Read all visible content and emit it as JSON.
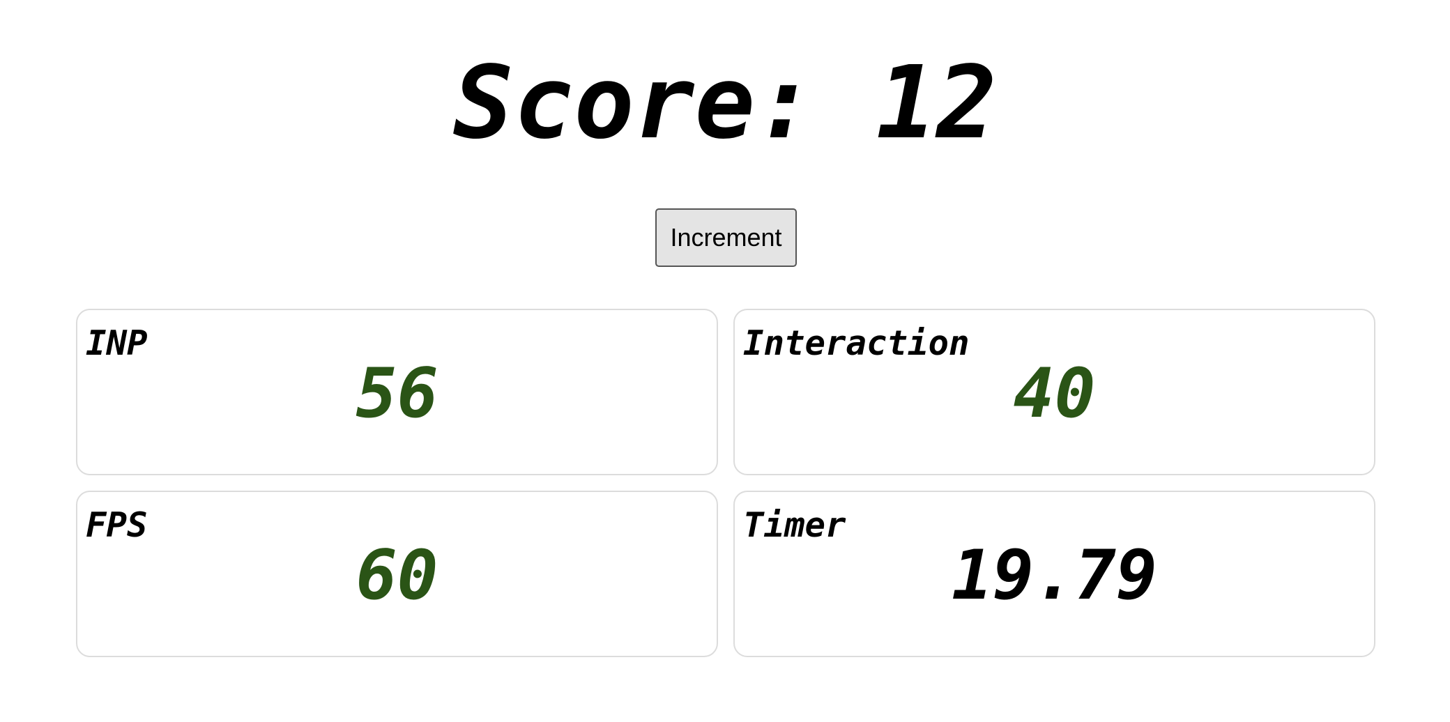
{
  "score": {
    "text": "Score: 12"
  },
  "increment_button": {
    "label": "Increment"
  },
  "metrics": [
    {
      "label": "INP",
      "value": "56",
      "color": "#2a5416"
    },
    {
      "label": "Interaction",
      "value": "40",
      "color": "#2a5416"
    },
    {
      "label": "FPS",
      "value": "60",
      "color": "#2a5416"
    },
    {
      "label": "Timer",
      "value": "19.79",
      "color": "#000000"
    }
  ]
}
